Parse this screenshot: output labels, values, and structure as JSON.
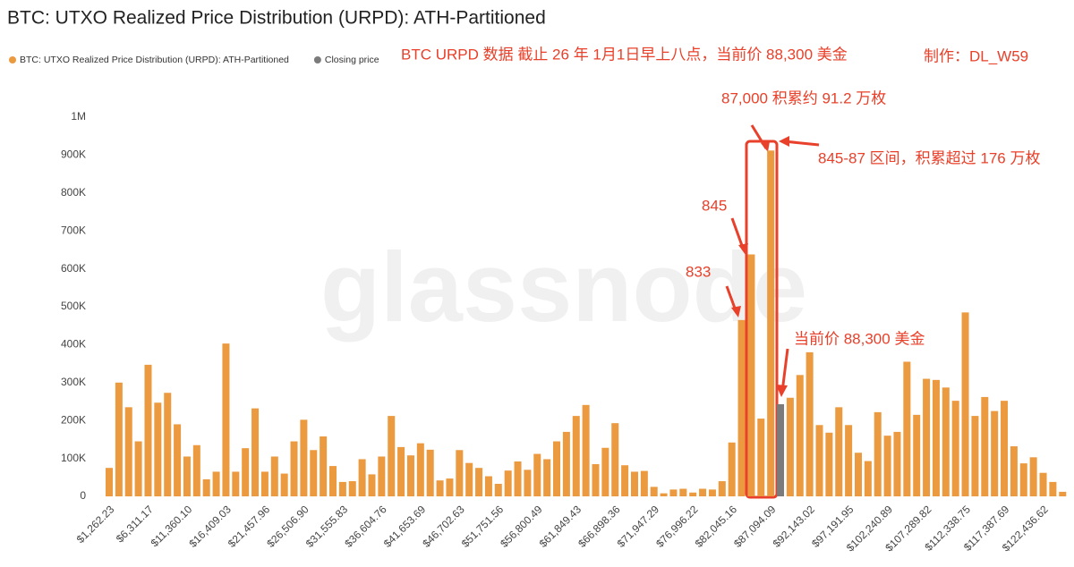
{
  "chart_data": {
    "type": "bar",
    "title": "BTC: UTXO Realized Price Distribution (URPD): ATH-Partitioned",
    "watermark": "glassnode",
    "annotations": [
      "BTC URPD 数据 截止 26 年 1月1日早上八点，当前价 88,300 美金",
      "制作：DL_W59",
      "87,000 积累约 91.2 万枚",
      "845-87 区间，积累超过 176 万枚",
      "845",
      "833",
      "当前价 88,300 美金"
    ],
    "categories": [
      "$1,262.23",
      null,
      null,
      null,
      "$6,311.17",
      null,
      null,
      null,
      "$11,360.10",
      null,
      null,
      null,
      "$16,409.03",
      null,
      null,
      null,
      "$21,457.96",
      null,
      null,
      null,
      "$26,506.90",
      null,
      null,
      null,
      "$31,555.83",
      null,
      null,
      null,
      "$36,604.76",
      null,
      null,
      null,
      "$41,653.69",
      null,
      null,
      null,
      "$46,702.63",
      null,
      null,
      null,
      "$51,751.56",
      null,
      null,
      null,
      "$56,800.49",
      null,
      null,
      null,
      "$61,849.43",
      null,
      null,
      null,
      "$66,898.36",
      null,
      null,
      null,
      "$71,947.29",
      null,
      null,
      null,
      "$76,996.22",
      null,
      null,
      null,
      "$82,045.16",
      null,
      null,
      null,
      "$87,094.09",
      null,
      null,
      null,
      "$92,143.02",
      null,
      null,
      null,
      "$97,191.95",
      null,
      null,
      null,
      "$102,240.89",
      null,
      null,
      null,
      "$107,289.82",
      null,
      null,
      null,
      "$112,338.75",
      null,
      null,
      null,
      "$117,387.69",
      null,
      null,
      null,
      "$122,436.62",
      null,
      null
    ],
    "series": [
      {
        "name": "BTC: UTXO Realized Price Distribution (URPD): ATH-Partitioned",
        "color": "#eb9a3f",
        "values": [
          75000,
          300000,
          235000,
          145000,
          347000,
          247000,
          273000,
          190000,
          105000,
          135000,
          45000,
          65000,
          403000,
          65000,
          127000,
          232000,
          65000,
          105000,
          60000,
          145000,
          202000,
          122000,
          158000,
          80000,
          38000,
          40000,
          98000,
          58000,
          105000,
          212000,
          130000,
          108000,
          140000,
          123000,
          42000,
          47000,
          122000,
          88000,
          75000,
          53000,
          33000,
          68000,
          92000,
          70000,
          112000,
          98000,
          145000,
          170000,
          212000,
          241000,
          85000,
          128000,
          193000,
          82000,
          65000,
          67000,
          25000,
          8000,
          18000,
          20000,
          10000,
          20000,
          18000,
          40000,
          142000,
          465000,
          638000,
          205000,
          912000,
          null,
          260000,
          320000,
          380000,
          188000,
          168000,
          235000,
          188000,
          115000,
          93000,
          222000,
          160000,
          170000,
          355000,
          215000,
          310000,
          307000,
          287000,
          252000,
          485000,
          212000,
          262000,
          225000,
          252000,
          132000,
          87000,
          103000,
          62000,
          38000,
          12000
        ]
      },
      {
        "name": "Closing price",
        "color": "#7b7b7b",
        "values": [
          null,
          null,
          null,
          null,
          null,
          null,
          null,
          null,
          null,
          null,
          null,
          null,
          null,
          null,
          null,
          null,
          null,
          null,
          null,
          null,
          null,
          null,
          null,
          null,
          null,
          null,
          null,
          null,
          null,
          null,
          null,
          null,
          null,
          null,
          null,
          null,
          null,
          null,
          null,
          null,
          null,
          null,
          null,
          null,
          null,
          null,
          null,
          null,
          null,
          null,
          null,
          null,
          null,
          null,
          null,
          null,
          null,
          null,
          null,
          null,
          null,
          null,
          null,
          null,
          null,
          null,
          null,
          null,
          null,
          243000,
          null,
          null,
          null,
          null,
          null,
          null,
          null,
          null,
          null,
          null,
          null,
          null,
          null,
          null,
          null,
          null,
          null,
          null,
          null,
          null,
          null,
          null,
          null,
          null,
          null,
          null,
          null,
          null,
          null
        ]
      }
    ],
    "ylim": [
      0,
      1000000
    ],
    "yticks": [
      0,
      {
        "value": 100000,
        "label": "100K"
      },
      {
        "value": 200000,
        "label": "200K"
      },
      {
        "value": 300000,
        "label": "300K"
      },
      {
        "value": 400000,
        "label": "400K"
      },
      {
        "value": 500000,
        "label": "500K"
      },
      {
        "value": 600000,
        "label": "600K"
      },
      {
        "value": 700000,
        "label": "700K"
      },
      {
        "value": 800000,
        "label": "800K"
      },
      {
        "value": 900000,
        "label": "900K"
      },
      {
        "value": 1000000,
        "label": "1M"
      }
    ],
    "grid": false
  }
}
